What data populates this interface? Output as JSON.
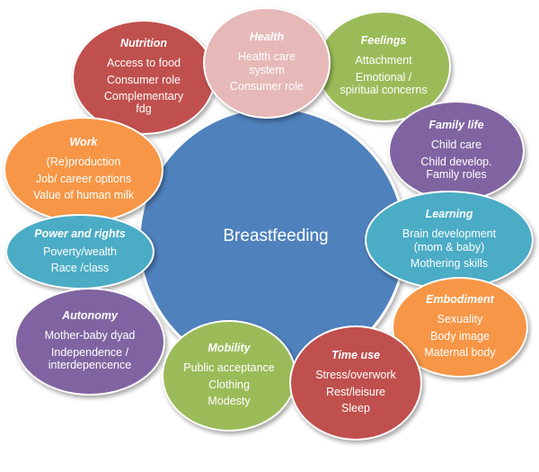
{
  "center": {
    "label": "Breastfeeding",
    "color": "#4f81bd"
  },
  "bubbles": [
    {
      "id": "nutrition",
      "title": "Nutrition",
      "color": "#c0504d",
      "items": [
        "Access to food",
        "Consumer role",
        "Complementary fdg"
      ]
    },
    {
      "id": "health",
      "title": "Health",
      "color": "#e6b9b8",
      "items": [
        "Health care system",
        "Consumer role"
      ]
    },
    {
      "id": "feelings",
      "title": "Feelings",
      "color": "#9bbb59",
      "items": [
        "Attachment",
        "Emotional / spiritual concerns"
      ]
    },
    {
      "id": "family-life",
      "title": "Family life",
      "color": "#8064a2",
      "items": [
        "Child care",
        "Child develop. Family roles"
      ]
    },
    {
      "id": "learning",
      "title": "Learning",
      "color": "#4bacc6",
      "items": [
        "Brain development (mom & baby)",
        "Mothering skills"
      ]
    },
    {
      "id": "embodiment",
      "title": "Embodiment",
      "color": "#f79646",
      "items": [
        "Sexuality",
        "Body image",
        "Maternal body"
      ]
    },
    {
      "id": "time-use",
      "title": "Time use",
      "color": "#c0504d",
      "items": [
        "Stress/overwork",
        "Rest/leisure",
        "Sleep"
      ]
    },
    {
      "id": "mobility",
      "title": "Mobility",
      "color": "#9bbb59",
      "items": [
        "Public acceptance",
        "Clothing",
        "Modesty"
      ]
    },
    {
      "id": "autonomy",
      "title": "Autonomy",
      "color": "#8064a2",
      "items": [
        "Mother-baby dyad",
        "Independence / interdepencence"
      ]
    },
    {
      "id": "power-and-rights",
      "title": "Power and rights",
      "color": "#4bacc6",
      "items": [
        "Poverty/wealth",
        "Race /class"
      ]
    },
    {
      "id": "work",
      "title": "Work",
      "color": "#f79646",
      "items": [
        "(Re)production",
        "Job/ career options",
        "Value of human milk"
      ]
    }
  ]
}
